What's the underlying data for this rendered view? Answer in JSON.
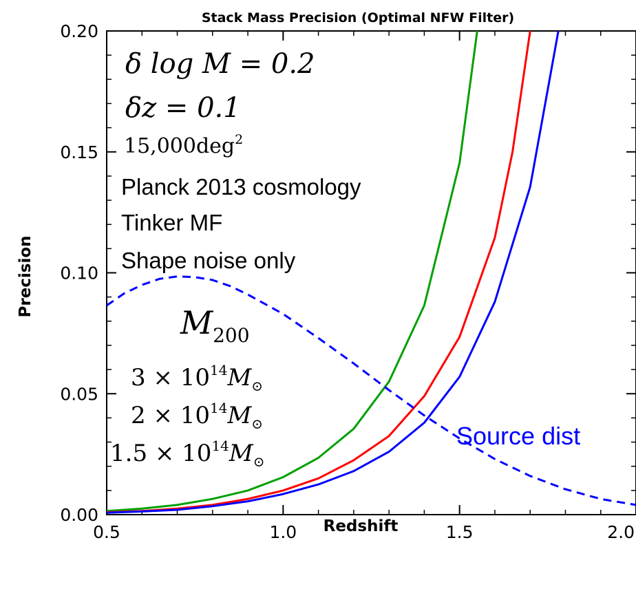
{
  "chart_data": {
    "type": "line",
    "title": "Stack Mass Precision (Optimal NFW Filter)",
    "xlabel": "Redshift",
    "ylabel": "Precision",
    "xlim": [
      0.5,
      2.0
    ],
    "ylim": [
      0.0,
      0.2
    ],
    "xticks": [
      "0.5",
      "1.0",
      "1.5",
      "2.0"
    ],
    "yticks": [
      "0.00",
      "0.05",
      "0.10",
      "0.15",
      "0.20"
    ],
    "grid": false,
    "series": [
      {
        "color": "#00a000",
        "style": "solid",
        "x": [
          0.5,
          0.6,
          0.7,
          0.8,
          0.9,
          1.0,
          1.1,
          1.2,
          1.3,
          1.4,
          1.5,
          1.55
        ],
        "y": [
          0.0015,
          0.0025,
          0.004,
          0.0065,
          0.01,
          0.0155,
          0.0235,
          0.0355,
          0.055,
          0.0865,
          0.1455,
          0.2
        ]
      },
      {
        "color": "#ff0000",
        "style": "solid",
        "x": [
          0.5,
          0.6,
          0.7,
          0.8,
          0.9,
          1.0,
          1.1,
          1.2,
          1.3,
          1.4,
          1.5,
          1.6,
          1.65,
          1.7
        ],
        "y": [
          0.001,
          0.0015,
          0.0025,
          0.004,
          0.0065,
          0.01,
          0.015,
          0.0225,
          0.0325,
          0.049,
          0.0735,
          0.1145,
          0.15,
          0.2
        ]
      },
      {
        "color": "#0000ff",
        "style": "solid",
        "x": [
          0.5,
          0.6,
          0.7,
          0.8,
          0.9,
          1.0,
          1.1,
          1.2,
          1.3,
          1.4,
          1.5,
          1.6,
          1.7,
          1.78
        ],
        "y": [
          0.0008,
          0.0013,
          0.002,
          0.0035,
          0.0055,
          0.0085,
          0.0125,
          0.018,
          0.026,
          0.038,
          0.057,
          0.088,
          0.1355,
          0.2
        ]
      },
      {
        "name": "Source dist",
        "color": "#0000ff",
        "style": "dashed",
        "x": [
          0.5,
          0.55,
          0.6,
          0.65,
          0.7,
          0.75,
          0.8,
          0.85,
          0.9,
          0.95,
          1.0,
          1.1,
          1.2,
          1.3,
          1.4,
          1.5,
          1.6,
          1.7,
          1.8,
          1.9,
          2.0
        ],
        "y": [
          0.0865,
          0.0915,
          0.095,
          0.0975,
          0.0985,
          0.0982,
          0.097,
          0.0945,
          0.091,
          0.087,
          0.083,
          0.073,
          0.0625,
          0.0515,
          0.041,
          0.0315,
          0.023,
          0.016,
          0.0105,
          0.0065,
          0.004
        ]
      }
    ],
    "annotations": {
      "params": [
        {
          "main": "δ log M = 0.2"
        },
        {
          "main": "δz = 0.1"
        },
        {
          "main": "15,000deg",
          "sup": "2"
        }
      ],
      "text_lines": [
        "Planck 2013 cosmology",
        "Tinker MF",
        "Shape noise only"
      ],
      "mass_header": {
        "main": "M",
        "sub": "200"
      },
      "masses": [
        {
          "coef": "3 × 10",
          "exp": "14",
          "unit": "M",
          "sun": "⊙"
        },
        {
          "coef": "2 × 10",
          "exp": "14",
          "unit": "M",
          "sun": "⊙"
        },
        {
          "coef": "1.5 × 10",
          "exp": "14",
          "unit": "M",
          "sun": "⊙"
        }
      ],
      "source_label": "Source dist"
    }
  }
}
